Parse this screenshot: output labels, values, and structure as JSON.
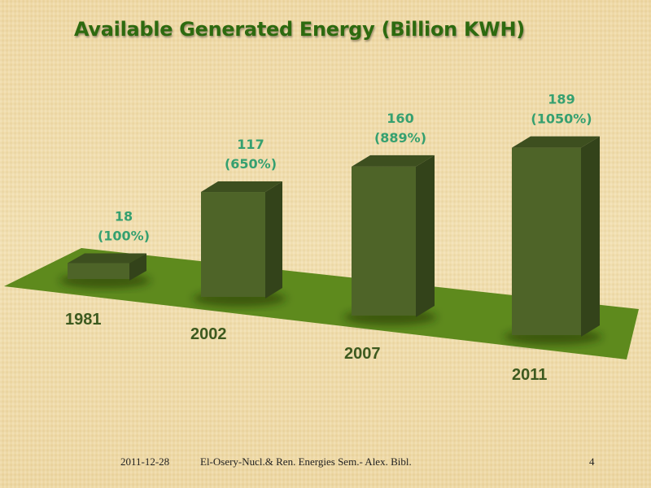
{
  "slide": {
    "footer_date": "2011-12-28",
    "footer_text": "El-Osery-Nucl.& Ren. Energies Sem.- Alex. Bibl.",
    "page_number": "4"
  },
  "chart_data": {
    "type": "bar",
    "title": "Available Generated Energy (Billion KWH)",
    "categories": [
      "1981",
      "2002",
      "2007",
      "2011"
    ],
    "values": [
      18,
      117,
      160,
      189
    ],
    "percent_labels": [
      "(100%)",
      "(650%)",
      "(889%)",
      "(1050%)"
    ],
    "value_labels": [
      "18",
      "117",
      "160",
      "189"
    ],
    "xlabel": "",
    "ylabel": "Billion KWH",
    "ylim": [
      0,
      200
    ],
    "grid": false,
    "legend": "none",
    "style": "3d-column",
    "colors": {
      "bar_front": "#4e6428",
      "bar_side": "#33431a",
      "bar_top": "#3d4f1f",
      "floor": "#5e8a1d",
      "value_label": "#35a070",
      "category_label": "#3d5a1f",
      "title": "#2d6a0f"
    }
  }
}
